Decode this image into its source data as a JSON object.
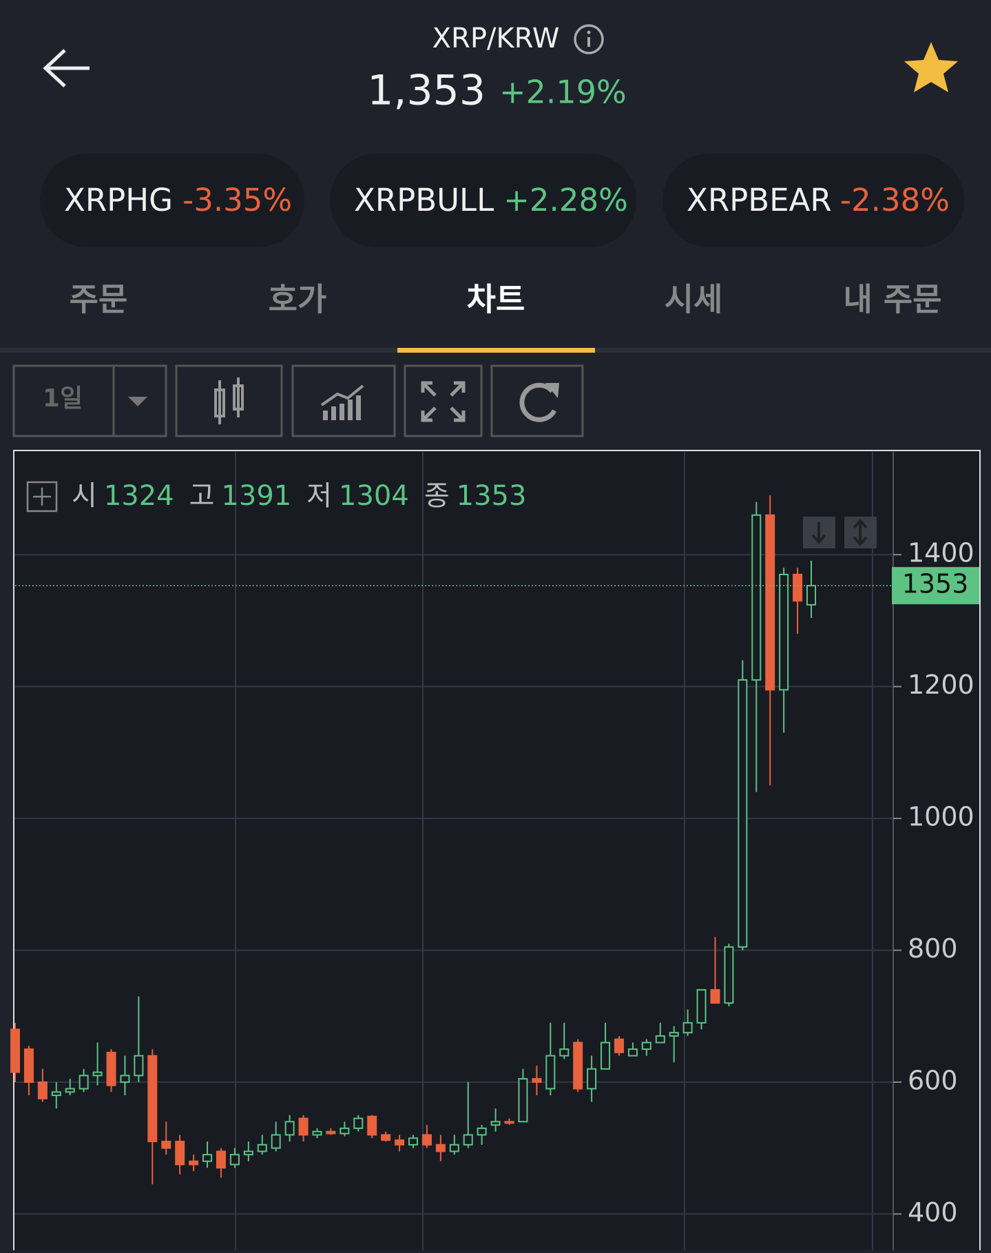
{
  "header": {
    "title": "XRP/KRW",
    "price": "1,353",
    "change": "+2.19%"
  },
  "related": [
    {
      "name": "XRPHG",
      "change": "-3.35%"
    },
    {
      "name": "XRPBULL",
      "change": "+2.28%"
    },
    {
      "name": "XRPBEAR",
      "change": "-2.38%"
    }
  ],
  "tabs": [
    "주문",
    "호가",
    "차트",
    "시세",
    "내 주문"
  ],
  "toolbar": {
    "interval": "1일"
  },
  "chart_data": {
    "type": "candlestick",
    "legend": [
      {
        "label": "시",
        "value": 1324
      },
      {
        "label": "고",
        "value": 1391
      },
      {
        "label": "저",
        "value": 1304
      },
      {
        "label": "종",
        "value": 1353
      }
    ],
    "last_price": 1353,
    "ylim": [
      345,
      1558
    ],
    "yticks": [
      400,
      600,
      800,
      1000,
      1200,
      1400
    ],
    "grid": true,
    "up_color": "#5cc384",
    "down_color": "#e8623d",
    "open": [
      680,
      650,
      600,
      580,
      585,
      590,
      610,
      645,
      600,
      610,
      640,
      510,
      510,
      480,
      480,
      495,
      475,
      490,
      495,
      500,
      520,
      545,
      520,
      525,
      522,
      530,
      548,
      520,
      512,
      505,
      520,
      505,
      495,
      505,
      520,
      535,
      540,
      540,
      605,
      590,
      640,
      660,
      590,
      620,
      665,
      640,
      650,
      660,
      670,
      675,
      690,
      740,
      720,
      805,
      1210,
      1460,
      1195,
      1370,
      1324
    ],
    "high": [
      690,
      655,
      620,
      600,
      605,
      620,
      660,
      650,
      640,
      730,
      650,
      540,
      520,
      490,
      510,
      500,
      500,
      510,
      520,
      540,
      550,
      550,
      530,
      530,
      540,
      550,
      550,
      525,
      520,
      520,
      535,
      520,
      520,
      600,
      535,
      560,
      545,
      620,
      625,
      690,
      690,
      665,
      640,
      690,
      670,
      660,
      665,
      690,
      685,
      710,
      740,
      820,
      810,
      1240,
      1480,
      1490,
      1380,
      1380,
      1391
    ],
    "low": [
      600,
      580,
      570,
      560,
      580,
      585,
      595,
      585,
      580,
      600,
      445,
      490,
      460,
      465,
      470,
      455,
      470,
      480,
      490,
      495,
      510,
      510,
      515,
      520,
      518,
      525,
      515,
      510,
      495,
      500,
      500,
      480,
      490,
      500,
      505,
      525,
      535,
      540,
      580,
      580,
      635,
      585,
      570,
      620,
      640,
      640,
      640,
      660,
      630,
      670,
      680,
      720,
      715,
      800,
      1040,
      1050,
      1130,
      1280,
      1304
    ],
    "close": [
      615,
      600,
      575,
      585,
      590,
      610,
      615,
      595,
      610,
      640,
      510,
      500,
      475,
      475,
      490,
      470,
      490,
      495,
      505,
      520,
      540,
      520,
      525,
      522,
      530,
      545,
      520,
      512,
      505,
      515,
      505,
      495,
      505,
      520,
      530,
      540,
      538,
      605,
      600,
      640,
      650,
      590,
      620,
      660,
      645,
      650,
      660,
      670,
      675,
      690,
      740,
      720,
      805,
      1210,
      1460,
      1195,
      1370,
      1330,
      1353
    ]
  }
}
